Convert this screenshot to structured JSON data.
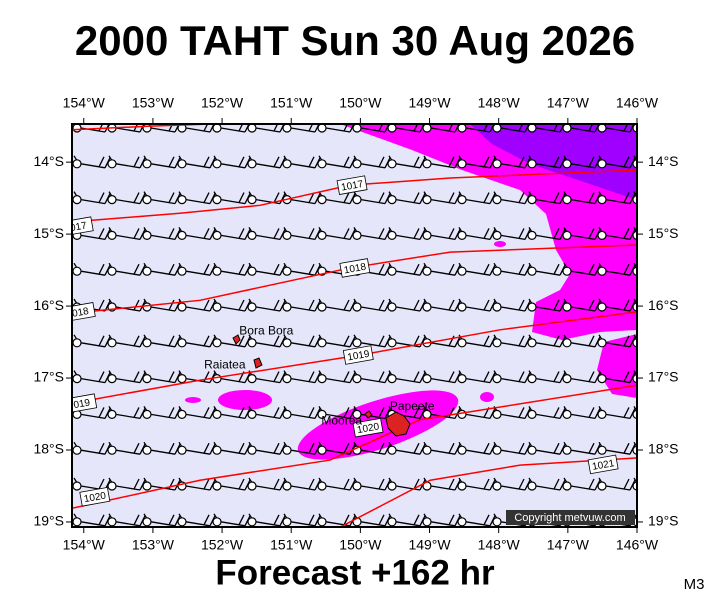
{
  "chart_data": {
    "type": "map",
    "title": "2000 TAHT Sun 30 Aug 2026",
    "footer": "Forecast +162 hr",
    "copyright": "Copyright metvuw.com",
    "corner_label": "M3",
    "xlim": [
      -154.17,
      -146
    ],
    "ylim": [
      -19.07,
      -13.47
    ],
    "xticks": [
      {
        "value": -154,
        "label": "154°W"
      },
      {
        "value": -153,
        "label": "153°W"
      },
      {
        "value": -152,
        "label": "152°W"
      },
      {
        "value": -151,
        "label": "151°W"
      },
      {
        "value": -150,
        "label": "150°W"
      },
      {
        "value": -149,
        "label": "149°W"
      },
      {
        "value": -148,
        "label": "148°W"
      },
      {
        "value": -147,
        "label": "147°W"
      },
      {
        "value": -146,
        "label": "146°W"
      }
    ],
    "yticks": [
      {
        "value": -14,
        "label": "14°S"
      },
      {
        "value": -15,
        "label": "15°S"
      },
      {
        "value": -16,
        "label": "16°S"
      },
      {
        "value": -17,
        "label": "17°S"
      },
      {
        "value": -18,
        "label": "18°S"
      },
      {
        "value": -19,
        "label": "19°S"
      }
    ],
    "isobar_color": "#ff0000",
    "isobars": [
      {
        "lon": [
          -154.17,
          -153.04,
          -152.17
        ],
        "lat": [
          -13.55,
          -13.5,
          -13.47
        ],
        "labels": []
      },
      {
        "lon": [
          -154.17,
          -152.61,
          -151.45,
          -150.15,
          -148.7,
          -146.0
        ],
        "lat": [
          -14.83,
          -14.71,
          -14.6,
          -14.32,
          -14.22,
          -14.11
        ],
        "labels": [
          {
            "text": "1017",
            "lon": -150.12,
            "lat": -14.32
          },
          {
            "text": "017",
            "lon": -154.08,
            "lat": -14.89
          }
        ]
      },
      {
        "lon": [
          -154.17,
          -152.32,
          -150.15,
          -148.7,
          -146.0
        ],
        "lat": [
          -16.1,
          -15.92,
          -15.47,
          -15.25,
          -15.15
        ],
        "labels": [
          {
            "text": "1018",
            "lon": -150.08,
            "lat": -15.47
          },
          {
            "text": "018",
            "lon": -154.05,
            "lat": -16.08
          }
        ]
      },
      {
        "lon": [
          -154.17,
          -152.32,
          -150.0,
          -147.98,
          -146.0
        ],
        "lat": [
          -17.35,
          -17.03,
          -16.68,
          -16.33,
          -16.08
        ],
        "labels": [
          {
            "text": "1019",
            "lon": -150.03,
            "lat": -16.68
          },
          {
            "text": "019",
            "lon": -154.03,
            "lat": -17.35
          }
        ]
      },
      {
        "lon": [
          -154.17,
          -152.32,
          -150.44,
          -149.14,
          -146.0
        ],
        "lat": [
          -18.81,
          -18.42,
          -18.14,
          -17.58,
          -17.1
        ],
        "labels": [
          {
            "text": "1020",
            "lon": -153.84,
            "lat": -18.65
          },
          {
            "text": "1020",
            "lon": -149.89,
            "lat": -17.69
          }
        ]
      },
      {
        "lon": [
          -150.29,
          -148.99,
          -147.69,
          -146.0
        ],
        "lat": [
          -19.07,
          -18.42,
          -18.21,
          -18.11
        ],
        "labels": [
          {
            "text": "1021",
            "lon": -146.49,
            "lat": -18.2
          }
        ]
      }
    ],
    "places": [
      {
        "name": "Bora Bora",
        "lon": -151.36,
        "lat": -16.35
      },
      {
        "name": "Raiatea",
        "lon": -151.96,
        "lat": -16.82
      },
      {
        "name": "Moorea",
        "lon": -150.27,
        "lat": -17.6
      },
      {
        "name": "Papeete",
        "lon": -149.25,
        "lat": -17.4
      }
    ]
  }
}
